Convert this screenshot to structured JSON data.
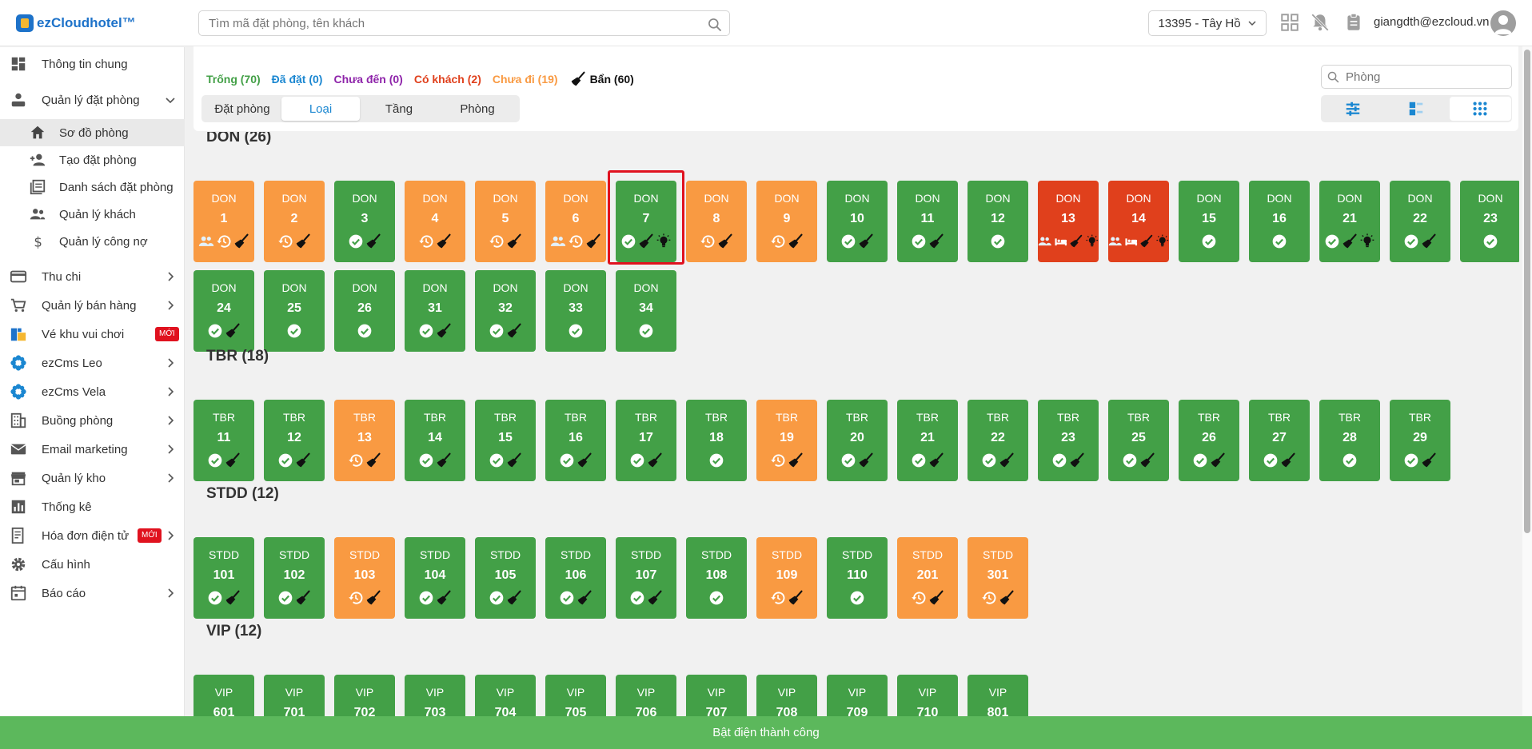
{
  "app": {
    "logo_text": "ezCloudhotel™"
  },
  "topbar": {
    "search_placeholder": "Tìm mã đặt phòng, tên khách",
    "hotel_select": "13395 - Tây Hồ",
    "user_email": "giangdth@ezcloud.vn"
  },
  "sidebar": {
    "items": [
      {
        "label": "Thông tin chung",
        "icon": "dashboard-icon"
      },
      {
        "label": "Quản lý đặt phòng",
        "icon": "booking-icon",
        "expanded": true
      },
      {
        "label": "Thu chi",
        "icon": "card-icon"
      },
      {
        "label": "Quản lý bán hàng",
        "icon": "cart-icon"
      },
      {
        "label": "Vé khu vui chơi",
        "icon": "ticket-icon",
        "badge": "MỚI"
      },
      {
        "label": "ezCms Leo",
        "icon": "flower-icon"
      },
      {
        "label": "ezCms Vela",
        "icon": "flower-icon"
      },
      {
        "label": "Buồng phòng",
        "icon": "building-icon"
      },
      {
        "label": "Email marketing",
        "icon": "mail-icon"
      },
      {
        "label": "Quản lý kho",
        "icon": "store-icon"
      },
      {
        "label": "Thống kê",
        "icon": "chart-icon"
      },
      {
        "label": "Hóa đơn điện tử",
        "icon": "invoice-icon",
        "badge": "MỚI"
      },
      {
        "label": "Cấu hình",
        "icon": "gear-icon"
      },
      {
        "label": "Báo cáo",
        "icon": "report-icon"
      }
    ],
    "subitems": [
      {
        "label": "Sơ đồ phòng",
        "icon": "home-icon",
        "active": true
      },
      {
        "label": "Tạo đặt phòng",
        "icon": "add-person-icon"
      },
      {
        "label": "Danh sách đặt phòng",
        "icon": "list-icon"
      },
      {
        "label": "Quản lý khách",
        "icon": "people-icon"
      },
      {
        "label": "Quản lý công nợ",
        "icon": "dollar-icon"
      }
    ]
  },
  "legend": {
    "empty": {
      "label": "Trống (70)",
      "color": "#43a047"
    },
    "booked": {
      "label": "Đã đặt (0)",
      "color": "#1b87d1"
    },
    "not_arrived": {
      "label": "Chưa đến (0)",
      "color": "#8e24aa"
    },
    "occupied": {
      "label": "Có khách (2)",
      "color": "#e0401c"
    },
    "not_left": {
      "label": "Chưa đi (19)",
      "color": "#f99a42"
    },
    "dirty": {
      "label": "Bẩn (60)",
      "color": "#111111"
    }
  },
  "modes": [
    "Đặt phòng",
    "Loại",
    "Tầng",
    "Phòng"
  ],
  "modes_selected": "Loại",
  "room_search_placeholder": "Phòng",
  "views": [
    "filter-view-icon",
    "card-view-icon",
    "grid-view-icon"
  ],
  "sections": [
    {
      "title": "DON (26)",
      "type": "DON",
      "rooms": [
        {
          "n": "1",
          "s": "o",
          "i": [
            "people",
            "clock",
            "broom"
          ]
        },
        {
          "n": "2",
          "s": "o",
          "i": [
            "clock",
            "broom"
          ]
        },
        {
          "n": "3",
          "s": "g",
          "i": [
            "check",
            "broom"
          ]
        },
        {
          "n": "4",
          "s": "o",
          "i": [
            "clock",
            "broom"
          ]
        },
        {
          "n": "5",
          "s": "o",
          "i": [
            "clock",
            "broom"
          ]
        },
        {
          "n": "6",
          "s": "o",
          "i": [
            "people",
            "clock",
            "broom"
          ]
        },
        {
          "n": "7",
          "s": "g",
          "i": [
            "check",
            "broom",
            "bulb"
          ],
          "selected": true
        },
        {
          "n": "8",
          "s": "o",
          "i": [
            "clock",
            "broom"
          ]
        },
        {
          "n": "9",
          "s": "o",
          "i": [
            "clock",
            "broom"
          ]
        },
        {
          "n": "10",
          "s": "g",
          "i": [
            "check",
            "broom"
          ]
        },
        {
          "n": "11",
          "s": "g",
          "i": [
            "check",
            "broom"
          ]
        },
        {
          "n": "12",
          "s": "g",
          "i": [
            "check"
          ]
        },
        {
          "n": "13",
          "s": "r",
          "i": [
            "people",
            "bed",
            "broom",
            "bulb"
          ]
        },
        {
          "n": "14",
          "s": "r",
          "i": [
            "people",
            "bed",
            "broom",
            "bulb"
          ]
        },
        {
          "n": "15",
          "s": "g",
          "i": [
            "check"
          ]
        },
        {
          "n": "16",
          "s": "g",
          "i": [
            "check"
          ]
        },
        {
          "n": "21",
          "s": "g",
          "i": [
            "check",
            "broom",
            "bulb"
          ]
        },
        {
          "n": "22",
          "s": "g",
          "i": [
            "check",
            "broom"
          ]
        },
        {
          "n": "23",
          "s": "g",
          "i": [
            "check"
          ]
        },
        {
          "n": "24",
          "s": "g",
          "i": [
            "check",
            "broom"
          ]
        },
        {
          "n": "25",
          "s": "g",
          "i": [
            "check"
          ]
        },
        {
          "n": "26",
          "s": "g",
          "i": [
            "check"
          ]
        },
        {
          "n": "31",
          "s": "g",
          "i": [
            "check",
            "broom"
          ]
        },
        {
          "n": "32",
          "s": "g",
          "i": [
            "check",
            "broom"
          ]
        },
        {
          "n": "33",
          "s": "g",
          "i": [
            "check"
          ]
        },
        {
          "n": "34",
          "s": "g",
          "i": [
            "check"
          ]
        }
      ]
    },
    {
      "title": "TBR (18)",
      "type": "TBR",
      "rooms": [
        {
          "n": "11",
          "s": "g",
          "i": [
            "check",
            "broom"
          ]
        },
        {
          "n": "12",
          "s": "g",
          "i": [
            "check",
            "broom"
          ]
        },
        {
          "n": "13",
          "s": "o",
          "i": [
            "clock",
            "broom"
          ]
        },
        {
          "n": "14",
          "s": "g",
          "i": [
            "check",
            "broom"
          ]
        },
        {
          "n": "15",
          "s": "g",
          "i": [
            "check",
            "broom"
          ]
        },
        {
          "n": "16",
          "s": "g",
          "i": [
            "check",
            "broom"
          ]
        },
        {
          "n": "17",
          "s": "g",
          "i": [
            "check",
            "broom"
          ]
        },
        {
          "n": "18",
          "s": "g",
          "i": [
            "check"
          ]
        },
        {
          "n": "19",
          "s": "o",
          "i": [
            "clock",
            "broom"
          ]
        },
        {
          "n": "20",
          "s": "g",
          "i": [
            "check",
            "broom"
          ]
        },
        {
          "n": "21",
          "s": "g",
          "i": [
            "check",
            "broom"
          ]
        },
        {
          "n": "22",
          "s": "g",
          "i": [
            "check",
            "broom"
          ]
        },
        {
          "n": "23",
          "s": "g",
          "i": [
            "check",
            "broom"
          ]
        },
        {
          "n": "25",
          "s": "g",
          "i": [
            "check",
            "broom"
          ]
        },
        {
          "n": "26",
          "s": "g",
          "i": [
            "check",
            "broom"
          ]
        },
        {
          "n": "27",
          "s": "g",
          "i": [
            "check",
            "broom"
          ]
        },
        {
          "n": "28",
          "s": "g",
          "i": [
            "check"
          ]
        },
        {
          "n": "29",
          "s": "g",
          "i": [
            "check",
            "broom"
          ]
        }
      ]
    },
    {
      "title": "STDD (12)",
      "type": "STDD",
      "rooms": [
        {
          "n": "101",
          "s": "g",
          "i": [
            "check",
            "broom"
          ]
        },
        {
          "n": "102",
          "s": "g",
          "i": [
            "check",
            "broom"
          ]
        },
        {
          "n": "103",
          "s": "o",
          "i": [
            "clock",
            "broom"
          ]
        },
        {
          "n": "104",
          "s": "g",
          "i": [
            "check",
            "broom"
          ]
        },
        {
          "n": "105",
          "s": "g",
          "i": [
            "check",
            "broom"
          ]
        },
        {
          "n": "106",
          "s": "g",
          "i": [
            "check",
            "broom"
          ]
        },
        {
          "n": "107",
          "s": "g",
          "i": [
            "check",
            "broom"
          ]
        },
        {
          "n": "108",
          "s": "g",
          "i": [
            "check"
          ]
        },
        {
          "n": "109",
          "s": "o",
          "i": [
            "clock",
            "broom"
          ]
        },
        {
          "n": "110",
          "s": "g",
          "i": [
            "check"
          ]
        },
        {
          "n": "201",
          "s": "o",
          "i": [
            "clock",
            "broom"
          ]
        },
        {
          "n": "301",
          "s": "o",
          "i": [
            "clock",
            "broom"
          ]
        }
      ]
    },
    {
      "title": "VIP (12)",
      "type": "VIP",
      "rooms": [
        {
          "n": "601",
          "s": "g",
          "i": []
        },
        {
          "n": "701",
          "s": "g",
          "i": []
        },
        {
          "n": "702",
          "s": "g",
          "i": []
        },
        {
          "n": "703",
          "s": "g",
          "i": []
        },
        {
          "n": "704",
          "s": "g",
          "i": []
        },
        {
          "n": "705",
          "s": "g",
          "i": []
        },
        {
          "n": "706",
          "s": "g",
          "i": []
        },
        {
          "n": "707",
          "s": "g",
          "i": []
        },
        {
          "n": "708",
          "s": "g",
          "i": []
        },
        {
          "n": "709",
          "s": "g",
          "i": []
        },
        {
          "n": "710",
          "s": "g",
          "i": []
        },
        {
          "n": "801",
          "s": "g",
          "i": []
        }
      ]
    }
  ],
  "toast": "Bật điện thành công"
}
